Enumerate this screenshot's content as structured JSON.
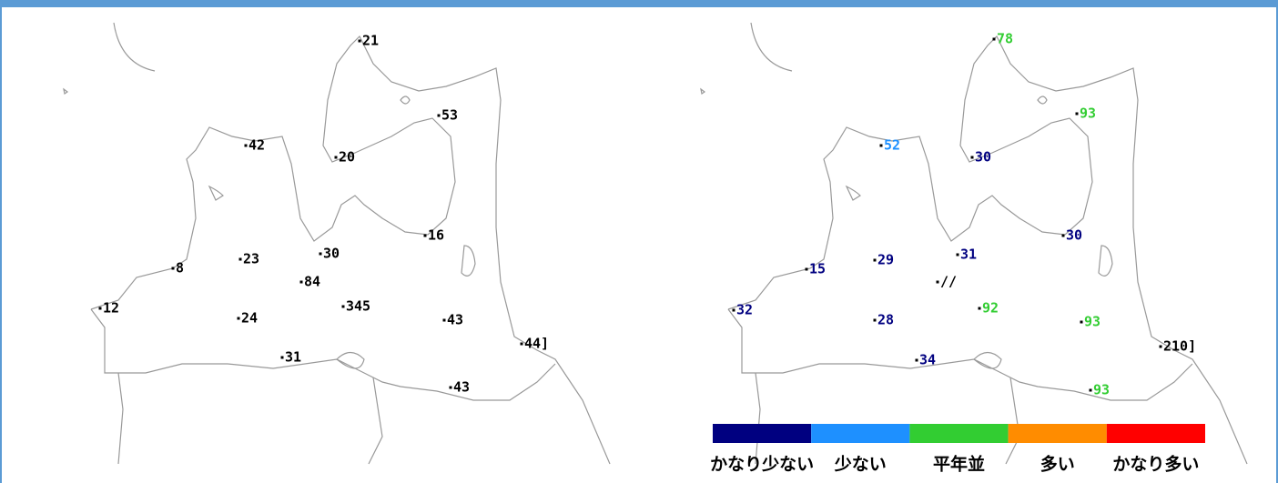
{
  "left_map": {
    "stations": [
      "21",
      "53",
      "42",
      "20",
      "16",
      "30",
      "23",
      "8",
      "84",
      "345",
      "12",
      "24",
      "43",
      "44]",
      "31",
      "43"
    ]
  },
  "right_map": {
    "stations": [
      {
        "label": "78",
        "color": "#32cd32"
      },
      {
        "label": "93",
        "color": "#32cd32"
      },
      {
        "label": "52",
        "color": "#1e90ff"
      },
      {
        "label": "30",
        "color": "#000080"
      },
      {
        "label": "30",
        "color": "#000080"
      },
      {
        "label": "31",
        "color": "#000080"
      },
      {
        "label": "29",
        "color": "#000080"
      },
      {
        "label": "15",
        "color": "#000080"
      },
      {
        "label": "//",
        "color": "#000000"
      },
      {
        "label": "92",
        "color": "#32cd32"
      },
      {
        "label": "32",
        "color": "#000080"
      },
      {
        "label": "28",
        "color": "#000080"
      },
      {
        "label": "93",
        "color": "#32cd32"
      },
      {
        "label": "210]",
        "color": "#000000"
      },
      {
        "label": "34",
        "color": "#000080"
      },
      {
        "label": "93",
        "color": "#32cd32"
      }
    ]
  },
  "legend": [
    {
      "label": "かなり少ない",
      "color": "#000080"
    },
    {
      "label": "少ない",
      "color": "#1e90ff"
    },
    {
      "label": "平年並",
      "color": "#32cd32"
    },
    {
      "label": "多い",
      "color": "#ff8c00"
    },
    {
      "label": "かなり多い",
      "color": "#ff0000"
    }
  ]
}
